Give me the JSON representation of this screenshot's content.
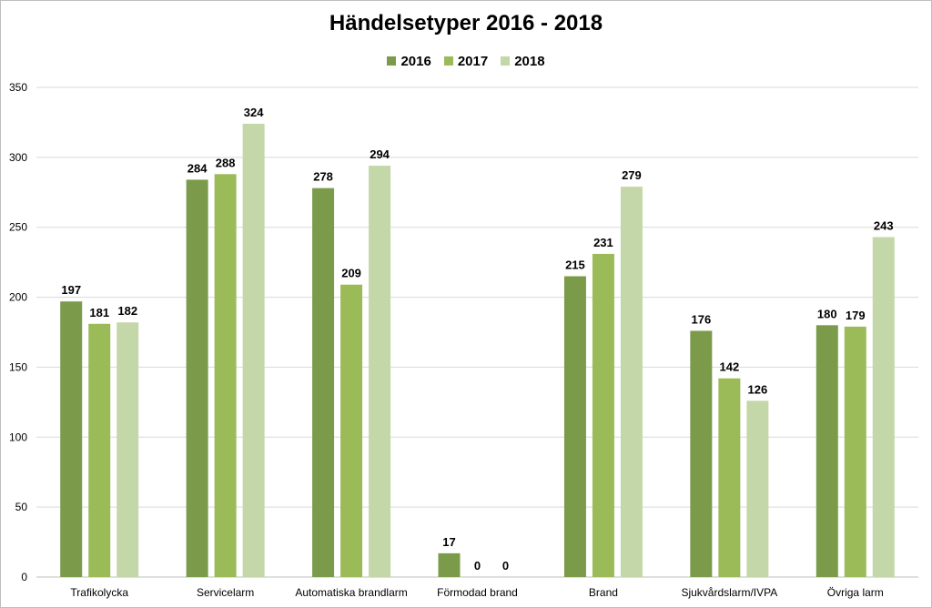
{
  "chart_data": {
    "type": "bar",
    "title": "Händelsetyper 2016 - 2018",
    "categories": [
      "Trafikolycka",
      "Servicelarm",
      "Automatiska brandlarm",
      "Förmodad brand",
      "Brand",
      "Sjukvårdslarm/IVPA",
      "Övriga larm"
    ],
    "series": [
      {
        "name": "2016",
        "color": "#7b9b4a",
        "values": [
          197,
          284,
          278,
          17,
          215,
          176,
          180
        ]
      },
      {
        "name": "2017",
        "color": "#9bbb59",
        "values": [
          181,
          288,
          209,
          0,
          231,
          142,
          179
        ]
      },
      {
        "name": "2018",
        "color": "#c4d7a8",
        "values": [
          182,
          324,
          294,
          0,
          279,
          126,
          243
        ]
      }
    ],
    "yticks": [
      "0",
      "50",
      "100",
      "150",
      "200",
      "250",
      "300",
      "350"
    ],
    "ylim": [
      0,
      350
    ],
    "grid": true,
    "legend_position": "top",
    "xlabel": "",
    "ylabel": ""
  }
}
